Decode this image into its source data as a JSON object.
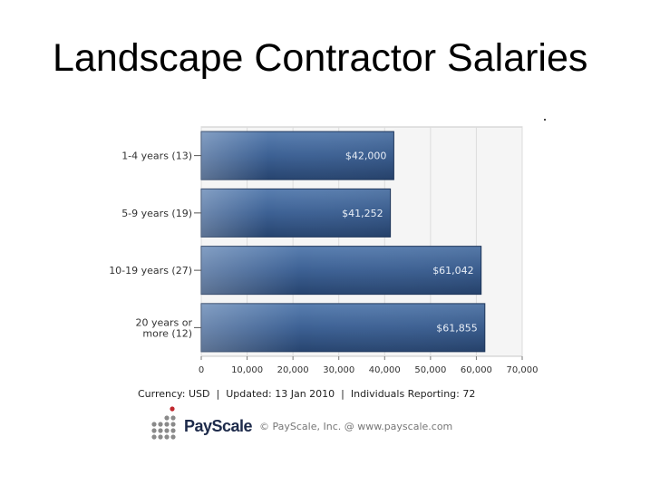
{
  "slide": {
    "title": "Landscape Contractor Salaries"
  },
  "chart_data": {
    "type": "bar",
    "orientation": "horizontal",
    "categories": [
      "1-4 years (13)",
      "5-9 years (19)",
      "10-19 years (27)",
      "20 years or more (12)"
    ],
    "category_lines": [
      [
        "1-4 years (13)"
      ],
      [
        "5-9 years (19)"
      ],
      [
        "10-19 years (27)"
      ],
      [
        "20 years or",
        "more (12)"
      ]
    ],
    "values": [
      42000,
      41252,
      61042,
      61855
    ],
    "value_labels": [
      "$42,000",
      "$41,252",
      "$61,042",
      "$61,855"
    ],
    "xlim": [
      0,
      70000
    ],
    "x_ticks": [
      0,
      10000,
      20000,
      30000,
      40000,
      50000,
      60000,
      70000
    ],
    "x_tick_labels": [
      "0",
      "10,000",
      "20,000",
      "30,000",
      "40,000",
      "50,000",
      "60,000",
      "70,000"
    ],
    "grid": true,
    "bar_color": "#3d6194",
    "title": "",
    "xlabel": "",
    "ylabel": ""
  },
  "footer": {
    "currency": "Currency: USD",
    "updated": "Updated: 13 Jan 2010",
    "reporting": "Individuals Reporting: 72",
    "separator": "|"
  },
  "brand": {
    "name": "PayScale",
    "copyright": "© PayScale, Inc. @ www.payscale.com",
    "dots_color": "#8a8a8a",
    "accent_color": "#c0272d"
  }
}
